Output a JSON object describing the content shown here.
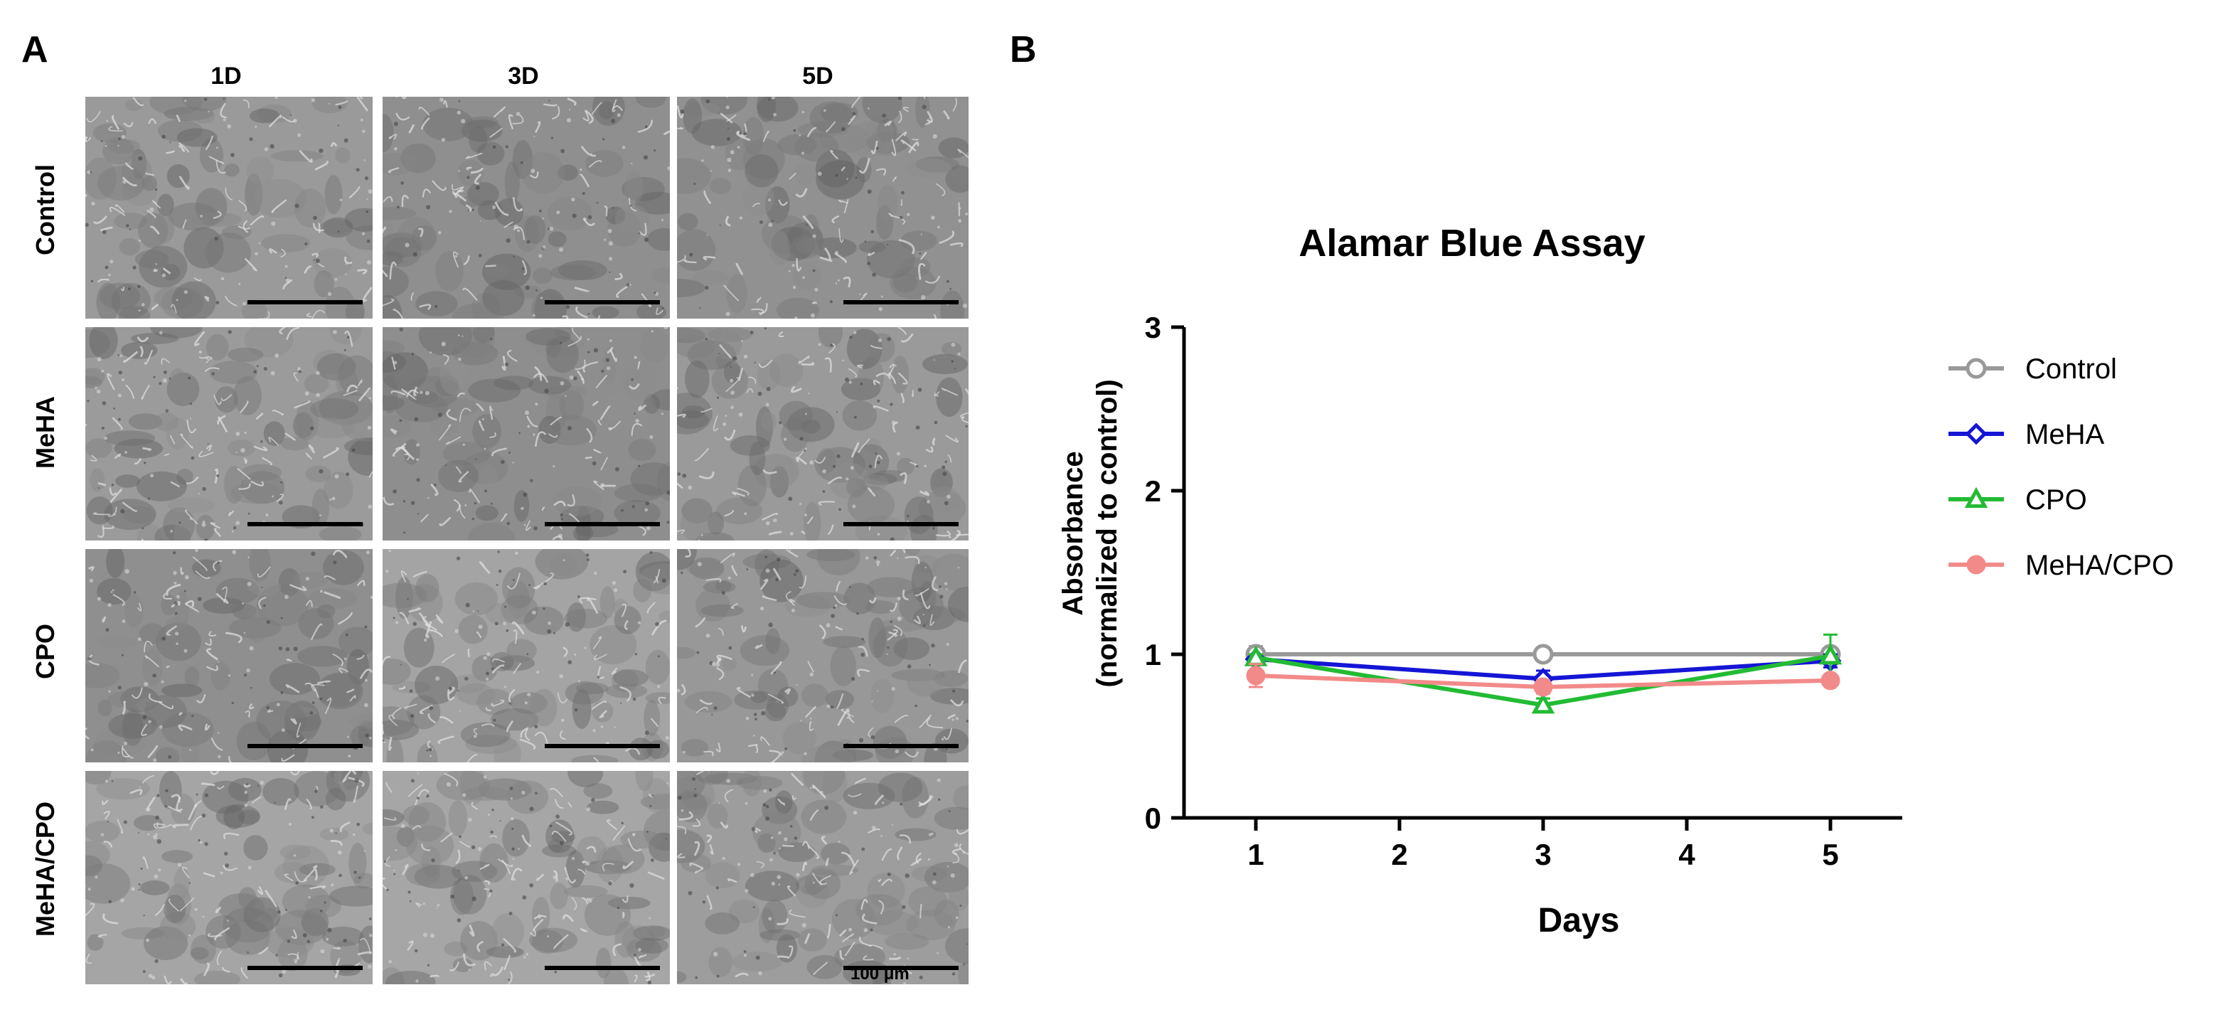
{
  "panel_a": {
    "letter": "A",
    "columns": [
      "1D",
      "3D",
      "5D"
    ],
    "rows": [
      "Control",
      "MeHA",
      "CPO",
      "MeHA/CPO"
    ],
    "scale_bar_label": "100 μm"
  },
  "panel_b": {
    "letter": "B"
  },
  "chart_data": {
    "type": "line",
    "title": "Alamar Blue Assay",
    "xlabel": "Days",
    "ylabel_line1": "Absorbance",
    "ylabel_line2": "(normalized to control)",
    "x_ticks": [
      "1",
      "2",
      "3",
      "4",
      "5"
    ],
    "y_ticks": [
      "0",
      "1",
      "2",
      "3"
    ],
    "xlim": [
      0.5,
      5.5
    ],
    "ylim": [
      0,
      3
    ],
    "legend_position": "right",
    "grid": false,
    "x": [
      1,
      3,
      5
    ],
    "series": [
      {
        "name": "Control",
        "color": "#999999",
        "marker": "open-circle",
        "values": [
          1.0,
          1.0,
          1.0
        ],
        "errors": [
          0.05,
          0.02,
          0.02
        ]
      },
      {
        "name": "MeHA",
        "color": "#1515d6",
        "marker": "open-diamond",
        "values": [
          0.97,
          0.85,
          0.96
        ],
        "errors": [
          0.03,
          0.05,
          0.04
        ]
      },
      {
        "name": "CPO",
        "color": "#22bb33",
        "marker": "open-triangle",
        "values": [
          0.98,
          0.69,
          0.99
        ],
        "errors": [
          0.02,
          0.04,
          0.13
        ]
      },
      {
        "name": "MeHA/CPO",
        "color": "#f28a8a",
        "marker": "filled-circle",
        "values": [
          0.87,
          0.8,
          0.84
        ],
        "errors": [
          0.07,
          0.04,
          0.02
        ]
      }
    ]
  }
}
